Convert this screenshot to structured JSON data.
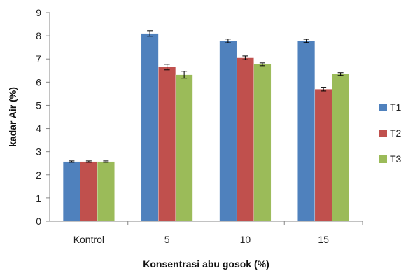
{
  "chart_data": {
    "type": "bar",
    "categories": [
      "Kontrol",
      "5",
      "10",
      "15"
    ],
    "series": [
      {
        "name": "T1",
        "values": [
          2.57,
          8.1,
          7.78,
          7.78
        ],
        "errors": [
          0.03,
          0.12,
          0.08,
          0.07
        ],
        "color": "#4F81BD"
      },
      {
        "name": "T2",
        "values": [
          2.57,
          6.65,
          7.05,
          5.7
        ],
        "errors": [
          0.03,
          0.12,
          0.08,
          0.08
        ],
        "color": "#C0504D"
      },
      {
        "name": "T3",
        "values": [
          2.57,
          6.32,
          6.77,
          6.35
        ],
        "errors": [
          0.03,
          0.15,
          0.06,
          0.06
        ],
        "color": "#9BBB59"
      }
    ],
    "title": "",
    "xlabel": "Konsentrasi abu gosok (%)",
    "ylabel": "kadar Air (%)",
    "ylim": [
      0,
      9
    ],
    "yticks": [
      "0",
      "1",
      "2",
      "3",
      "4",
      "5",
      "6",
      "7",
      "8",
      "9"
    ],
    "grid": false,
    "legend_position": "right"
  }
}
